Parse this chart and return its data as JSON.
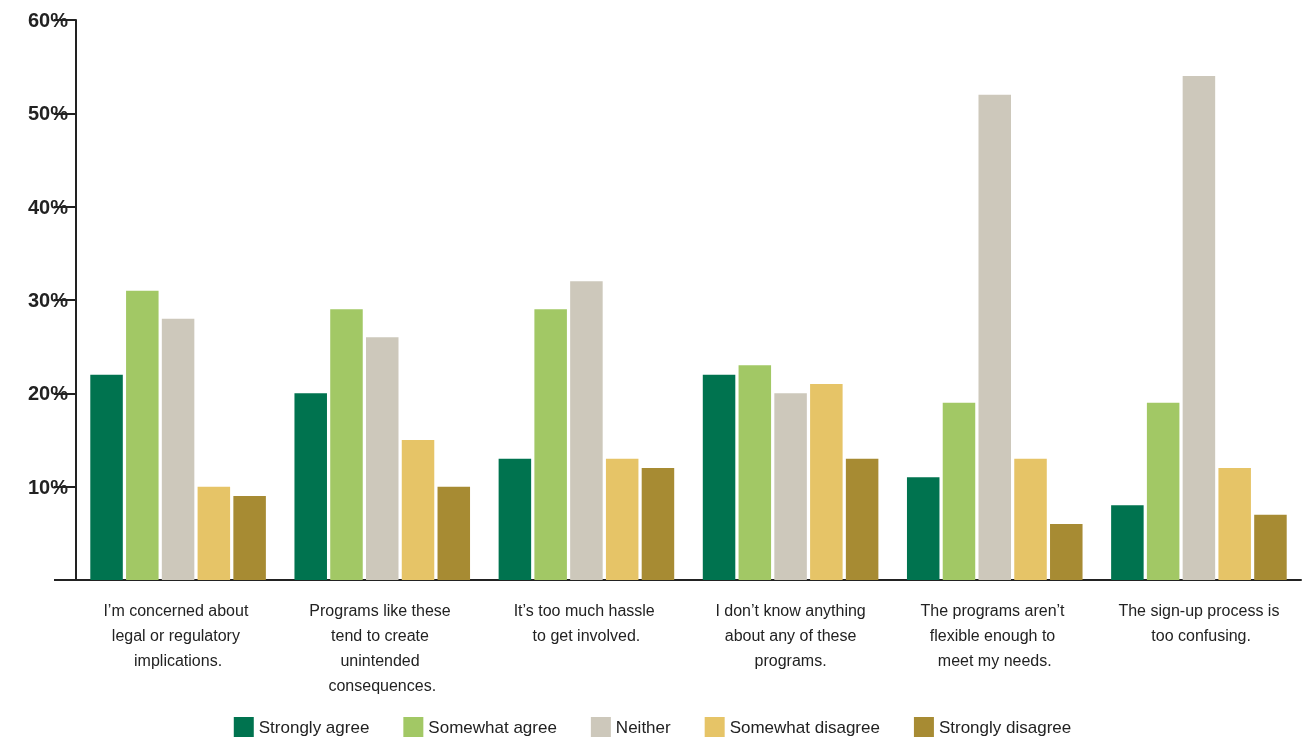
{
  "chart_data": {
    "type": "bar",
    "categories": [
      "I’m concerned about legal or regulatory implications.",
      "Programs like these tend to create unintended consequences.",
      "It’s too much hassle to get involved.",
      "I don’t know anything about any of these programs.",
      "The programs aren’t flexible enough to meet my needs.",
      "The sign-up process is too confusing."
    ],
    "series": [
      {
        "name": "Strongly agree",
        "color": "#00734f",
        "values": [
          22,
          20,
          13,
          22,
          11,
          8
        ]
      },
      {
        "name": "Somewhat agree",
        "color": "#a2c865",
        "values": [
          31,
          29,
          29,
          23,
          19,
          19
        ]
      },
      {
        "name": "Neither",
        "color": "#cdc8bb",
        "values": [
          28,
          26,
          32,
          20,
          52,
          54
        ]
      },
      {
        "name": "Somewhat disagree",
        "color": "#e6c467",
        "values": [
          10,
          15,
          13,
          21,
          13,
          12
        ]
      },
      {
        "name": "Strongly disagree",
        "color": "#a78b33",
        "values": [
          9,
          10,
          12,
          13,
          6,
          7
        ]
      }
    ],
    "ylim": [
      0,
      60
    ],
    "yticks": [
      {
        "value": 0,
        "label": null
      },
      {
        "value": 10,
        "label": "10%"
      },
      {
        "value": 20,
        "label": "20%"
      },
      {
        "value": 30,
        "label": "30%"
      },
      {
        "value": 40,
        "label": "40%"
      },
      {
        "value": 50,
        "label": "50%"
      },
      {
        "value": 60,
        "label": "60%"
      }
    ],
    "grid": false,
    "legend": "bottom"
  }
}
